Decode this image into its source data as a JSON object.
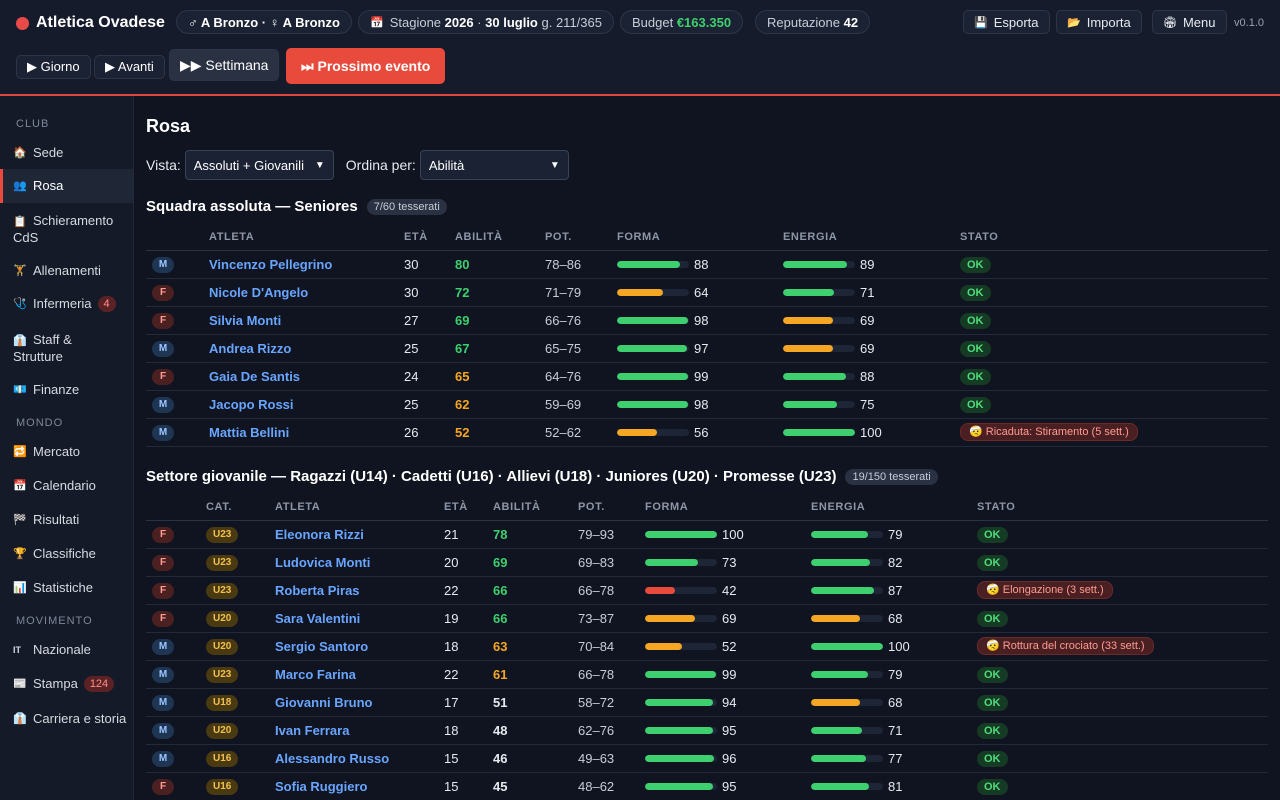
{
  "header": {
    "club_name": "Atletica Ovadese",
    "division_label": "♂ A Bronzo · ♀ A Bronzo",
    "season_prefix": "Stagione",
    "season_year": "2026",
    "season_date": "30 luglio",
    "season_day": "g. 211/365",
    "budget_label": "Budget",
    "budget_value": "€163.350",
    "reputation_label": "Reputazione",
    "reputation_value": "42",
    "export_label": "Esporta",
    "import_label": "Importa",
    "menu_label": "Menu",
    "version": "v0.1.0"
  },
  "controls": {
    "day": "▶ Giorno",
    "forward": "▶ Avanti",
    "week": "▶▶ Settimana",
    "next_event": "⏭ Prossimo evento"
  },
  "sidebar": {
    "section_club": "CLUB",
    "section_world": "MONDO",
    "section_movement": "MOVIMENTO",
    "items": [
      {
        "icon": "🏠",
        "label": "Sede"
      },
      {
        "icon": "👥",
        "label": "Rosa"
      },
      {
        "icon": "📋",
        "label": "Schieramento CdS"
      },
      {
        "icon": "🏋",
        "label": "Allenamenti"
      },
      {
        "icon": "🩺",
        "label": "Infermeria",
        "badge": "4"
      },
      {
        "icon": "👔",
        "label": "Staff & Strutture"
      },
      {
        "icon": "💶",
        "label": "Finanze"
      },
      {
        "icon": "🔁",
        "label": "Mercato"
      },
      {
        "icon": "📅",
        "label": "Calendario"
      },
      {
        "icon": "🏁",
        "label": "Risultati"
      },
      {
        "icon": "🏆",
        "label": "Classifiche"
      },
      {
        "icon": "📊",
        "label": "Statistiche"
      },
      {
        "icon": "IT",
        "label": "Nazionale"
      },
      {
        "icon": "📰",
        "label": "Stampa",
        "badge": "124"
      },
      {
        "icon": "👔",
        "label": "Carriera e storia"
      }
    ]
  },
  "main": {
    "title": "Rosa",
    "view_label": "Vista:",
    "view_value": "Assoluti + Giovanili",
    "sort_label": "Ordina per:",
    "sort_value": "Abilità",
    "seniors": {
      "title": "Squadra assoluta — Seniores",
      "count": "7/60 tesserati",
      "columns": [
        "ATLETA",
        "ETÀ",
        "ABILITÀ",
        "POT.",
        "FORMA",
        "ENERGIA",
        "STATO"
      ],
      "rows": [
        {
          "sex": "M",
          "name": "Vincenzo Pellegrino",
          "age": "30",
          "ability": "80",
          "pot": "78–86",
          "form": 88,
          "energy": 89,
          "status": "OK"
        },
        {
          "sex": "F",
          "name": "Nicole D'Angelo",
          "age": "30",
          "ability": "72",
          "pot": "71–79",
          "form": 64,
          "energy": 71,
          "status": "OK"
        },
        {
          "sex": "F",
          "name": "Silvia Monti",
          "age": "27",
          "ability": "69",
          "pot": "66–76",
          "form": 98,
          "energy": 69,
          "status": "OK"
        },
        {
          "sex": "M",
          "name": "Andrea Rizzo",
          "age": "25",
          "ability": "67",
          "pot": "65–75",
          "form": 97,
          "energy": 69,
          "status": "OK"
        },
        {
          "sex": "F",
          "name": "Gaia De Santis",
          "age": "24",
          "ability": "65",
          "pot": "64–76",
          "form": 99,
          "energy": 88,
          "status": "OK"
        },
        {
          "sex": "M",
          "name": "Jacopo Rossi",
          "age": "25",
          "ability": "62",
          "pot": "59–69",
          "form": 98,
          "energy": 75,
          "status": "OK"
        },
        {
          "sex": "M",
          "name": "Mattia Bellini",
          "age": "26",
          "ability": "52",
          "pot": "52–62",
          "form": 56,
          "energy": 100,
          "status": "🤕 Ricaduta: Stiramento (5 sett.)"
        }
      ]
    },
    "youth": {
      "title": "Settore giovanile — Ragazzi (U14) · Cadetti (U16) · Allievi (U18) · Juniores (U20) · Promesse (U23)",
      "count": "19/150 tesserati",
      "columns": [
        "CAT.",
        "ATLETA",
        "ETÀ",
        "ABILITÀ",
        "POT.",
        "FORMA",
        "ENERGIA",
        "STATO"
      ],
      "rows": [
        {
          "sex": "F",
          "cat": "U23",
          "name": "Eleonora Rizzi",
          "age": "21",
          "ability": "78",
          "pot": "79–93",
          "form": 100,
          "energy": 79,
          "status": "OK"
        },
        {
          "sex": "F",
          "cat": "U23",
          "name": "Ludovica Monti",
          "age": "20",
          "ability": "69",
          "pot": "69–83",
          "form": 73,
          "energy": 82,
          "status": "OK"
        },
        {
          "sex": "F",
          "cat": "U23",
          "name": "Roberta Piras",
          "age": "22",
          "ability": "66",
          "pot": "66–78",
          "form": 42,
          "energy": 87,
          "status": "🤕 Elongazione (3 sett.)"
        },
        {
          "sex": "F",
          "cat": "U20",
          "name": "Sara Valentini",
          "age": "19",
          "ability": "66",
          "pot": "73–87",
          "form": 69,
          "energy": 68,
          "status": "OK"
        },
        {
          "sex": "M",
          "cat": "U20",
          "name": "Sergio Santoro",
          "age": "18",
          "ability": "63",
          "pot": "70–84",
          "form": 52,
          "energy": 100,
          "status": "🤕 Rottura del crociato (33 sett.)"
        },
        {
          "sex": "M",
          "cat": "U23",
          "name": "Marco Farina",
          "age": "22",
          "ability": "61",
          "pot": "66–78",
          "form": 99,
          "energy": 79,
          "status": "OK"
        },
        {
          "sex": "M",
          "cat": "U18",
          "name": "Giovanni Bruno",
          "age": "17",
          "ability": "51",
          "pot": "58–72",
          "form": 94,
          "energy": 68,
          "status": "OK"
        },
        {
          "sex": "M",
          "cat": "U20",
          "name": "Ivan Ferrara",
          "age": "18",
          "ability": "48",
          "pot": "62–76",
          "form": 95,
          "energy": 71,
          "status": "OK"
        },
        {
          "sex": "M",
          "cat": "U16",
          "name": "Alessandro Russo",
          "age": "15",
          "ability": "46",
          "pot": "49–63",
          "form": 96,
          "energy": 77,
          "status": "OK"
        },
        {
          "sex": "F",
          "cat": "U16",
          "name": "Sofia Ruggiero",
          "age": "15",
          "ability": "45",
          "pot": "48–62",
          "form": 95,
          "energy": 81,
          "status": "OK"
        }
      ]
    }
  },
  "colors": {
    "accent": "#e84a3c",
    "good": "#3ecf6e",
    "mid": "#f5a623",
    "low": "#e84a3c",
    "link": "#69a5ff"
  }
}
